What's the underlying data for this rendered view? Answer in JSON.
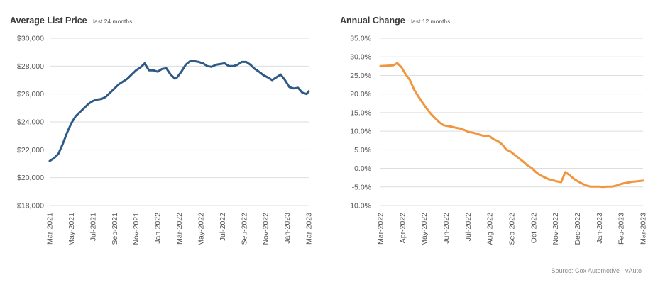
{
  "source_note": "Source: Cox Automotive - vAuto",
  "chart_data": [
    {
      "id": "avg-list-price",
      "type": "line",
      "title": "Average List Price",
      "subtitle": "last 24 months",
      "color": "#2e5a87",
      "ylim": [
        18000,
        30000
      ],
      "y_ticks": [
        18000,
        20000,
        22000,
        24000,
        26000,
        28000,
        30000
      ],
      "y_tick_labels": [
        "$18,000",
        "$20,000",
        "$22,000",
        "$24,000",
        "$26,000",
        "$28,000",
        "$30,000"
      ],
      "x_ticks": [
        "Mar-2021",
        "May-2021",
        "Jul-2021",
        "Sep-2021",
        "Nov-2021",
        "Jan-2022",
        "Mar-2022",
        "May-2022",
        "Jul-2022",
        "Sep-2022",
        "Nov-2022",
        "Jan-2023",
        "Mar-2023"
      ],
      "grid": "horizontal",
      "x_range": [
        0,
        24
      ],
      "x": [
        0,
        0.4,
        0.8,
        1.2,
        1.6,
        2.0,
        2.4,
        2.8,
        3.2,
        3.6,
        4.0,
        4.4,
        4.8,
        5.2,
        5.6,
        6.0,
        6.4,
        6.8,
        7.2,
        7.6,
        8.0,
        8.4,
        8.8,
        9.2,
        9.6,
        10.0,
        10.4,
        10.8,
        11.2,
        11.6,
        11.8,
        12.2,
        12.6,
        13.0,
        13.4,
        13.8,
        14.2,
        14.6,
        15.0,
        15.4,
        15.8,
        16.2,
        16.6,
        17.0,
        17.4,
        17.8,
        18.2,
        18.6,
        19.0,
        19.4,
        19.8,
        20.2,
        20.6,
        21.0,
        21.4,
        21.8,
        22.2,
        22.6,
        23.0,
        23.4,
        23.8,
        24.0
      ],
      "values": [
        21200,
        21400,
        21700,
        22400,
        23200,
        23900,
        24400,
        24700,
        25000,
        25300,
        25500,
        25600,
        25650,
        25800,
        26100,
        26400,
        26700,
        26900,
        27100,
        27400,
        27700,
        27900,
        28200,
        27700,
        27700,
        27600,
        27800,
        27850,
        27400,
        27100,
        27200,
        27600,
        28100,
        28350,
        28350,
        28300,
        28200,
        28000,
        27950,
        28100,
        28150,
        28200,
        28000,
        28000,
        28100,
        28300,
        28300,
        28100,
        27800,
        27600,
        27350,
        27200,
        27000,
        27200,
        27400,
        27000,
        26500,
        26400,
        26450,
        26100,
        26000,
        26200
      ]
    },
    {
      "id": "annual-change",
      "type": "line",
      "title": "Annual Change",
      "subtitle": "last 12 months",
      "color": "#f0963f",
      "ylim": [
        -10,
        35
      ],
      "y_ticks": [
        -10,
        -5,
        0,
        5,
        10,
        15,
        20,
        25,
        30,
        35
      ],
      "y_tick_labels": [
        "-10.0%",
        "-5.0%",
        "0.0%",
        "5.0%",
        "10.0%",
        "15.0%",
        "20.0%",
        "25.0%",
        "30.0%",
        "35.0%"
      ],
      "x_ticks": [
        "Mar-2022",
        "Apr-2022",
        "May-2022",
        "Jun-2022",
        "Jul-2022",
        "Aug-2022",
        "Sep-2022",
        "Oct-2022",
        "Nov-2022",
        "Dec-2022",
        "Jan-2023",
        "Feb-2023",
        "Mar-2023"
      ],
      "grid": "horizontal",
      "x_range": [
        0,
        12.5
      ],
      "x": [
        0,
        0.3,
        0.6,
        0.8,
        1.0,
        1.2,
        1.4,
        1.6,
        1.8,
        2.0,
        2.2,
        2.4,
        2.6,
        2.8,
        3.0,
        3.2,
        3.4,
        3.6,
        3.8,
        4.0,
        4.2,
        4.4,
        4.6,
        4.8,
        5.0,
        5.2,
        5.4,
        5.6,
        5.8,
        6.0,
        6.2,
        6.4,
        6.6,
        6.8,
        7.0,
        7.2,
        7.4,
        7.6,
        7.8,
        8.0,
        8.2,
        8.4,
        8.6,
        8.8,
        9.0,
        9.2,
        9.4,
        9.6,
        9.8,
        10.0,
        10.2,
        10.4,
        10.6,
        10.8,
        11.0,
        11.2,
        11.4,
        11.6,
        11.8,
        12.0,
        12.2,
        12.5
      ],
      "values": [
        27.5,
        27.6,
        27.7,
        28.3,
        27.2,
        25.3,
        23.8,
        21.2,
        19.4,
        17.7,
        16.1,
        14.7,
        13.5,
        12.4,
        11.6,
        11.4,
        11.2,
        10.9,
        10.7,
        10.3,
        9.8,
        9.6,
        9.3,
        8.9,
        8.7,
        8.6,
        7.8,
        7.3,
        6.4,
        5.0,
        4.5,
        3.6,
        2.7,
        1.8,
        0.8,
        0.1,
        -1.0,
        -1.8,
        -2.4,
        -2.9,
        -3.2,
        -3.5,
        -3.7,
        -1.0,
        -1.8,
        -2.8,
        -3.5,
        -4.1,
        -4.6,
        -4.9,
        -4.9,
        -4.9,
        -5.0,
        -4.9,
        -4.9,
        -4.7,
        -4.3,
        -4.0,
        -3.8,
        -3.6,
        -3.5,
        -3.3
      ]
    }
  ]
}
